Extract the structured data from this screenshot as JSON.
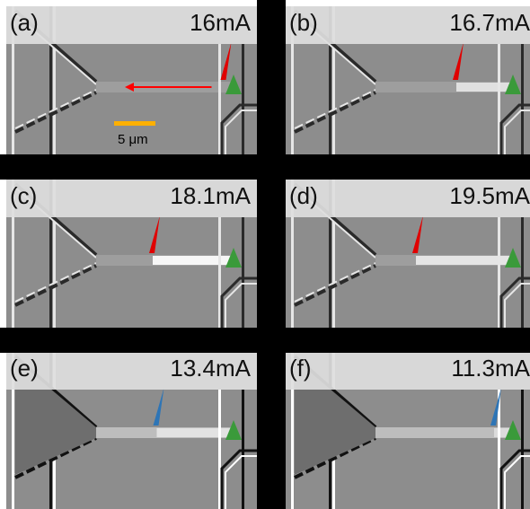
{
  "panels": [
    {
      "label": "(a)",
      "current": "16mA",
      "marker": "red",
      "front": 0.95,
      "hot": 0.0,
      "arrow": true,
      "scale": true,
      "dark": false
    },
    {
      "label": "(b)",
      "current": "16.7mA",
      "marker": "red",
      "front": 0.6,
      "hot": 0.6,
      "arrow": false,
      "scale": false,
      "dark": false
    },
    {
      "label": "(c)",
      "current": "18.1mA",
      "marker": "red",
      "front": 0.42,
      "hot": 1.0,
      "arrow": false,
      "scale": false,
      "dark": false
    },
    {
      "label": "(d)",
      "current": "19.5mA",
      "marker": "red",
      "front": 0.3,
      "hot": 0.7,
      "arrow": false,
      "scale": false,
      "dark": false
    },
    {
      "label": "(e)",
      "current": "13.4mA",
      "marker": "blue",
      "front": 0.45,
      "hot": 0.4,
      "arrow": false,
      "scale": false,
      "dark": true
    },
    {
      "label": "(f)",
      "current": "11.3mA",
      "marker": "blue",
      "front": 0.88,
      "hot": 0.2,
      "arrow": false,
      "scale": false,
      "dark": true
    }
  ],
  "scale_label": "5 μm",
  "colors": {
    "red_marker": "#e00000",
    "blue_marker": "#2e75b6",
    "green_marker": "#3a9a3a",
    "arrow": "#ff0000",
    "scale_bar": "#ffb000",
    "separator": "#000000"
  }
}
